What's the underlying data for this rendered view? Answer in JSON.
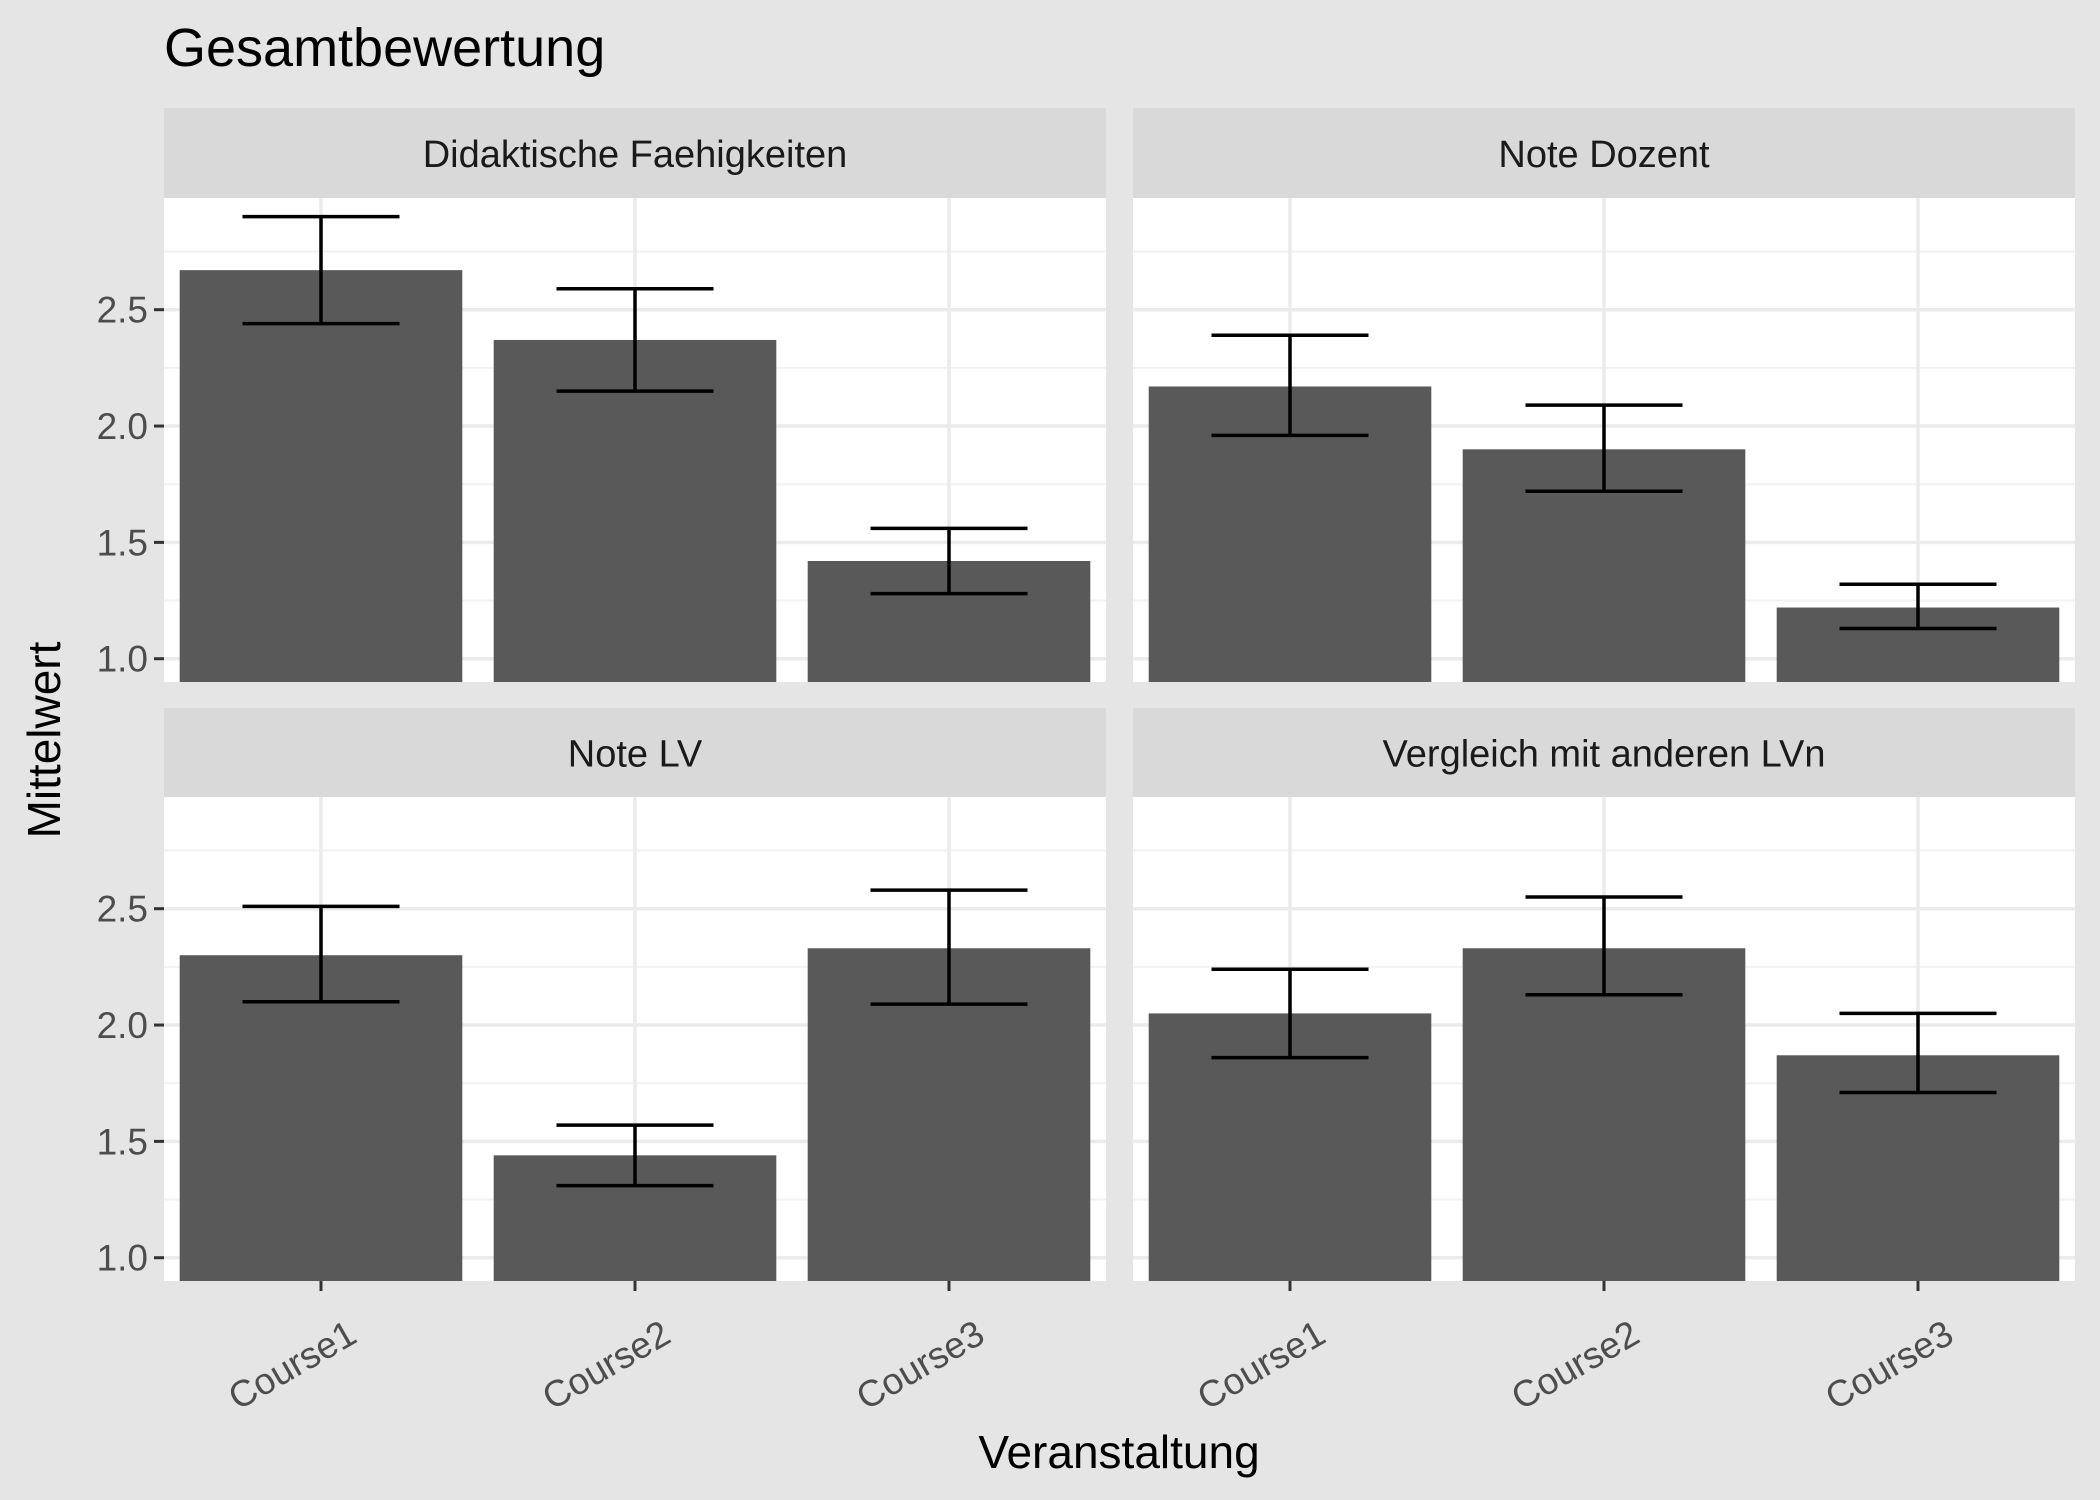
{
  "chart_data": {
    "type": "bar",
    "title": "Gesamtbewertung",
    "xlabel": "Veranstaltung",
    "ylabel": "Mittelwert",
    "ylim": [
      0.9,
      2.98
    ],
    "yticks": [
      "1.0",
      "1.5",
      "2.0",
      "2.5"
    ],
    "categories": [
      "Course1",
      "Course2",
      "Course3"
    ],
    "grid": true,
    "facets": [
      {
        "title": "Didaktische Faehigkeiten",
        "values": [
          2.67,
          2.37,
          1.42
        ],
        "error_low": [
          2.44,
          2.15,
          1.28
        ],
        "error_high": [
          2.9,
          2.59,
          1.56
        ]
      },
      {
        "title": "Note Dozent",
        "values": [
          2.17,
          1.9,
          1.22
        ],
        "error_low": [
          1.96,
          1.72,
          1.13
        ],
        "error_high": [
          2.39,
          2.09,
          1.32
        ]
      },
      {
        "title": "Note LV",
        "values": [
          2.3,
          1.44,
          2.33
        ],
        "error_low": [
          2.1,
          1.31,
          2.09
        ],
        "error_high": [
          2.51,
          1.57,
          2.58
        ]
      },
      {
        "title": "Vergleich mit anderen LVn",
        "values": [
          2.05,
          2.33,
          1.87
        ],
        "error_low": [
          1.86,
          2.13,
          1.71
        ],
        "error_high": [
          2.24,
          2.55,
          2.05
        ]
      }
    ],
    "colors": {
      "background": "#e5e5e5",
      "panel": "#ffffff",
      "strip": "#d9d9d9",
      "grid": "#ebebeb",
      "bar": "#595959",
      "errorbar": "#000000",
      "tick_label": "#4d4d4d",
      "text": "#000000"
    }
  }
}
